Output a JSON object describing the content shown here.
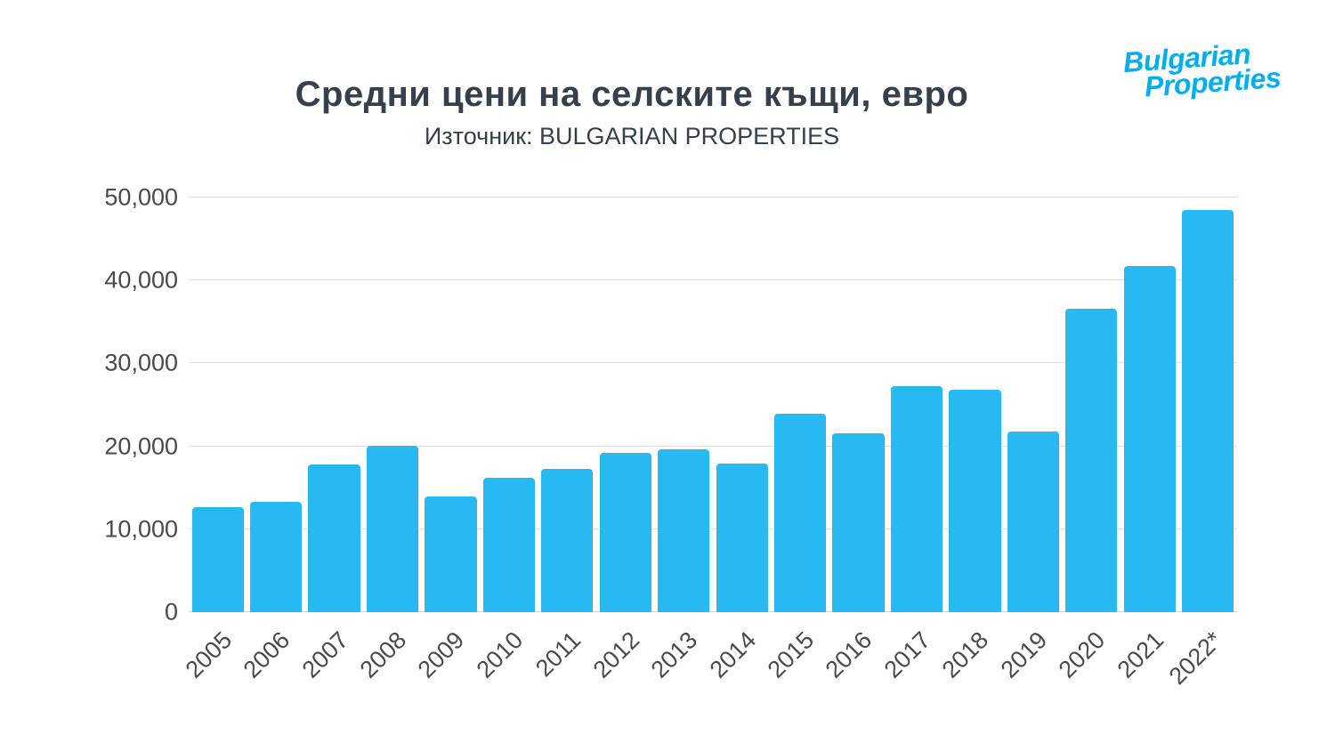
{
  "title": "Средни цени на селските къщи, евро",
  "subtitle": "Източник: BULGARIAN PROPERTIES",
  "logo": {
    "line1": "Bulgarian",
    "line2": "Properties",
    "color": "#00AEEF"
  },
  "chart_data": {
    "type": "bar",
    "title": "Средни цени на селските къщи, евро",
    "source": "Източник: BULGARIAN PROPERTIES",
    "categories": [
      "2005",
      "2006",
      "2007",
      "2008",
      "2009",
      "2010",
      "2011",
      "2012",
      "2013",
      "2014",
      "2015",
      "2016",
      "2017",
      "2018",
      "2019",
      "2020",
      "2021",
      "2022*"
    ],
    "values": [
      12700,
      13300,
      17800,
      20100,
      13900,
      16200,
      17300,
      19200,
      19600,
      17900,
      23900,
      21600,
      27300,
      26800,
      21800,
      36600,
      41700,
      48500
    ],
    "xlabel": "",
    "ylabel": "",
    "ylim": [
      0,
      50000
    ],
    "yticks": [
      0,
      10000,
      20000,
      30000,
      40000,
      50000
    ],
    "ytick_labels": [
      "0",
      "10,000",
      "20,000",
      "30,000",
      "40,000",
      "50,000"
    ],
    "grid": "horizontal",
    "legend": "none",
    "bar_color": "#29B9F2"
  }
}
